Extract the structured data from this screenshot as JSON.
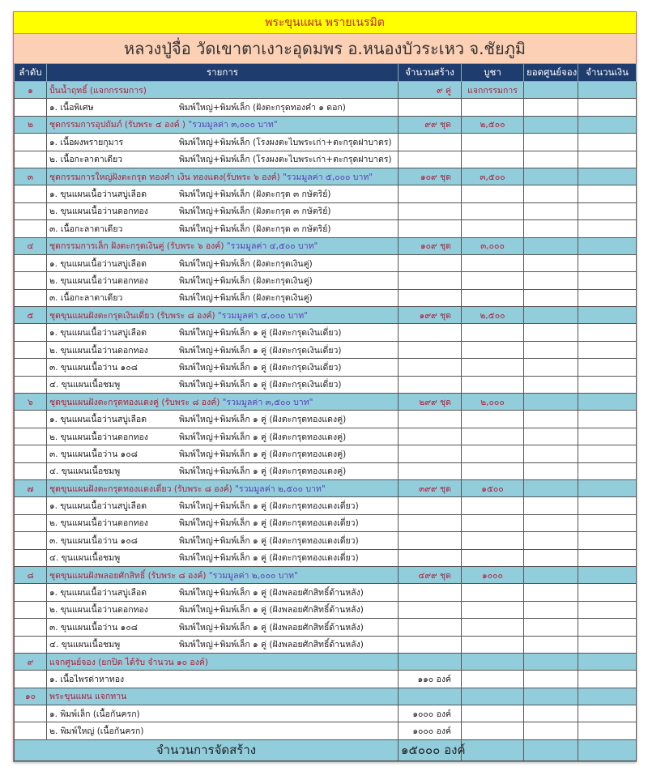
{
  "title": "พระขุนแผน พรายเนรมิต",
  "subtitle": "หลวงปู่จื่อ  วัดเขาตาเงาะอุดมพร  อ.หนองบัวระเหว  จ.ชัยภูมิ",
  "columns": [
    "ลำดับ",
    "รายการ",
    "จำนวนสร้าง",
    "บูชา",
    "ยอดศูนย์จอง",
    "จำนวนเงิน"
  ],
  "sections": [
    {
      "no": "๑",
      "title": "ปั้นน้ำฤทธิ์ (แจกกรรมการ)",
      "note": "",
      "qty": "๙ คู่",
      "price": "แจกกรรมการ",
      "items": [
        {
          "name": "๑. เนื้อพิเศษ",
          "spec": "พิมพ์ใหญ่+พิมพ์เล็ก   (ฝังตะกรุดทองคำ ๑ ดอก)",
          "qty": ""
        }
      ]
    },
    {
      "no": "๒",
      "title": "ชุดกรรมการอุปถัมภ์ (รับพระ ๔ องค์ ) ",
      "note": "\"รวมมูลค่า ๓,๐๐๐ บาท\"",
      "qty": "๙๙ ชุด",
      "price": "๒,๕๐๐",
      "items": [
        {
          "name": "๑. เนื้อผงพรายกุมาร",
          "spec": "พิมพ์ใหญ่+พิมพ์เล็ก   (โรงผงตะไบพระเก่า+ตะกรุดฝาบาตร)",
          "qty": ""
        },
        {
          "name": "๒. เนื้อกะลาตาเดียว",
          "spec": "พิมพ์ใหญ่+พิมพ์เล็ก   (โรงผงตะไบพระเก่า+ตะกรุดฝาบาตร)",
          "qty": ""
        }
      ]
    },
    {
      "no": "๓",
      "title": "ชุดกรรมการใหญ่ฝังตะกรุด ทองคำ เงิน ทองแดง(รับพระ ๖ องค์) ",
      "note": "\"รวมมูลค่า ๕,๐๐๐ บาท\"",
      "qty": "๑๐๙ ชุด",
      "price": "๓,๕๐๐",
      "items": [
        {
          "name": "๑. ขุนแผนเนื้อว่านสบู่เลือด",
          "spec": "พิมพ์ใหญ่+พิมพ์เล็ก   (ฝังตะกรุด ๓ กษัตริย์)",
          "qty": ""
        },
        {
          "name": "๒. ขุนแผนเนื้อว่านดอกทอง",
          "spec": "พิมพ์ใหญ่+พิมพ์เล็ก   (ฝังตะกรุด ๓ กษัตริย์)",
          "qty": ""
        },
        {
          "name": "๓. เนื้อกะลาตาเดียว",
          "spec": "พิมพ์ใหญ่+พิมพ์เล็ก   (ฝังตะกรุด ๓ กษัตริย์)",
          "qty": ""
        }
      ]
    },
    {
      "no": "๔",
      "title": "ชุดกรรมการเล็ก ฝังตะกรุดเงินคู่ (รับพระ ๖ องค์) ",
      "note": "\"รวมมูลค่า ๔,๕๐๐ บาท\"",
      "qty": "๑๐๙ ชุด",
      "price": "๓,๐๐๐",
      "items": [
        {
          "name": "๑. ขุนแผนเนื้อว่านสบู่เลือด",
          "spec": "พิมพ์ใหญ่+พิมพ์เล็ก   (ฝังตะกรุดเงินคู่)",
          "qty": ""
        },
        {
          "name": "๒. ขุนแผนเนื้อว่านดอกทอง",
          "spec": "พิมพ์ใหญ่+พิมพ์เล็ก   (ฝังตะกรุดเงินคู่)",
          "qty": ""
        },
        {
          "name": "๓. เนื้อกะลาตาเดียว",
          "spec": "พิมพ์ใหญ่+พิมพ์เล็ก   (ฝังตะกรุดเงินคู่)",
          "qty": ""
        }
      ]
    },
    {
      "no": "๕",
      "title": "ชุดขุนแผนฝังตะกรุดเงินเดี่ยว (รับพระ ๘ องค์) ",
      "note": "\"รวมมูลค่า ๔,๐๐๐ บาท\"",
      "qty": "๑๙๙ ชุด",
      "price": "๒,๕๐๐",
      "items": [
        {
          "name": "๑. ขุนแผนเนื้อว่านสบู่เลือด",
          "spec": "พิมพ์ใหญ่+พิมพ์เล็ก ๑ คู่  (ฝังตะกรุดเงินเดี่ยว)",
          "qty": ""
        },
        {
          "name": "๒. ขุนแผนเนื้อว่านดอกทอง",
          "spec": "พิมพ์ใหญ่+พิมพ์เล็ก ๑ คู่  (ฝังตะกรุดเงินเดี่ยว)",
          "qty": ""
        },
        {
          "name": "๓. ขุนแผนเนื้อว่าน ๑๐๘",
          "spec": "พิมพ์ใหญ่+พิมพ์เล็ก ๑ คู่  (ฝังตะกรุดเงินเดี่ยว)",
          "qty": ""
        },
        {
          "name": "๔. ขุนแผนเนื้อชมพู",
          "spec": "พิมพ์ใหญ่+พิมพ์เล็ก ๑ คู่  (ฝังตะกรุดเงินเดี่ยว)",
          "qty": ""
        }
      ]
    },
    {
      "no": "๖",
      "title": "ชุดขุนแผนฝังตะกรุดทองแดงคู่ (รับพระ ๘ องค์) ",
      "note": "\"รวมมูลค่า ๓,๕๐๐ บาท\"",
      "qty": "๒๙๙ ชุด",
      "price": "๒,๐๐๐",
      "items": [
        {
          "name": "๑. ขุนแผนเนื้อว่านสบู่เลือด",
          "spec": "พิมพ์ใหญ่+พิมพ์เล็ก ๑ คู่  (ฝังตะกรุดทองแดงคู่)",
          "qty": ""
        },
        {
          "name": "๒. ขุนแผนเนื้อว่านดอกทอง",
          "spec": "พิมพ์ใหญ่+พิมพ์เล็ก ๑ คู่  (ฝังตะกรุดทองแดงคู่)",
          "qty": ""
        },
        {
          "name": "๓. ขุนแผนเนื้อว่าน ๑๐๘",
          "spec": "พิมพ์ใหญ่+พิมพ์เล็ก ๑ คู่  (ฝังตะกรุดทองแดงคู่)",
          "qty": ""
        },
        {
          "name": "๔. ขุนแผนเนื้อชมพู",
          "spec": "พิมพ์ใหญ่+พิมพ์เล็ก ๑ คู่  (ฝังตะกรุดทองแดงคู่)",
          "qty": ""
        }
      ]
    },
    {
      "no": "๗",
      "title": "ชุดขุนแผนฝังตะกรุดทองแดงเดี่ยว (รับพระ ๘ องค์) ",
      "note": "\"รวมมูลค่า ๒,๕๐๐ บาท\"",
      "qty": "๓๙๙ ชุด",
      "price": "๑๕๐๐",
      "items": [
        {
          "name": "๑. ขุนแผนเนื้อว่านสบู่เลือด",
          "spec": "พิมพ์ใหญ่+พิมพ์เล็ก ๑ คู่  (ฝังตะกรุดทองแดงเดี่ยว)",
          "qty": ""
        },
        {
          "name": "๒. ขุนแผนเนื้อว่านดอกทอง",
          "spec": "พิมพ์ใหญ่+พิมพ์เล็ก ๑ คู่  (ฝังตะกรุดทองแดงเดี่ยว)",
          "qty": ""
        },
        {
          "name": "๓. ขุนแผนเนื้อว่าน ๑๐๘",
          "spec": "พิมพ์ใหญ่+พิมพ์เล็ก ๑ คู่  (ฝังตะกรุดทองแดงเดี่ยว)",
          "qty": ""
        },
        {
          "name": "๔. ขุนแผนเนื้อชมพู",
          "spec": "พิมพ์ใหญ่+พิมพ์เล็ก ๑ คู่  (ฝังตะกรุดทองแดงเดี่ยว)",
          "qty": ""
        }
      ]
    },
    {
      "no": "๘",
      "title": "ชุดขุนแผนฝังพลอยศักสิทธิ์ (รับพระ ๘ องค์) ",
      "note": "\"รวมมูลค่า ๒,๐๐๐ บาท\"",
      "qty": "๔๙๙ ชุด",
      "price": "๑๐๐๐",
      "items": [
        {
          "name": "๑. ขุนแผนเนื้อว่านสบู่เลือด",
          "spec": "พิมพ์ใหญ่+พิมพ์เล็ก ๑ คู่  (ฝังพลอยศักสิทธิ์ด้านหลัง)",
          "qty": ""
        },
        {
          "name": "๒. ขุนแผนเนื้อว่านดอกทอง",
          "spec": "พิมพ์ใหญ่+พิมพ์เล็ก ๑ คู่  (ฝังพลอยศักสิทธิ์ด้านหลัง)",
          "qty": ""
        },
        {
          "name": "๓. ขุนแผนเนื้อว่าน ๑๐๘",
          "spec": "พิมพ์ใหญ่+พิมพ์เล็ก ๑ คู่  (ฝังพลอยศักสิทธิ์ด้านหลัง)",
          "qty": ""
        },
        {
          "name": "๔. ขุนแผนเนื้อชมพู",
          "spec": "พิมพ์ใหญ่+พิมพ์เล็ก ๑ คู่  (ฝังพลอยศักสิทธิ์ด้านหลัง)",
          "qty": ""
        }
      ]
    },
    {
      "no": "๙",
      "title": "แจกศูนย์จอง  (ยกปิด  ได้รับ  จำนวน ๑๐ องค์)",
      "note": "",
      "qty": "",
      "price": "",
      "items": [
        {
          "name": "๑. เนื้อไพรด่าหาทอง",
          "spec": "",
          "qty": "๑๑๐ องค์"
        }
      ]
    },
    {
      "no": "๑๐",
      "title": "พระขุนแผน แจกทาน",
      "note": "",
      "qty": "",
      "price": "",
      "items": [
        {
          "name": "๑. พิมพ์เล็ก (เนื้อกันครก)",
          "spec": "",
          "qty": "๑๐๐๐ องค์"
        },
        {
          "name": "๒. พิมพ์ใหญ่ (เนื้อกันครก)",
          "spec": "",
          "qty": "๑๐๐๐ องค์"
        }
      ]
    }
  ],
  "total": {
    "label": "จำนวนการจัดสร้าง",
    "qty": "๑๕๐๐๐ องค์"
  },
  "colors": {
    "title_bg": "#ffff00",
    "subtitle_bg": "#fbd0b5",
    "header_bg": "#1f3c6e",
    "section_bg": "#92cddc",
    "section_text": "#b0203a",
    "note_text": "#5a3fb5"
  }
}
